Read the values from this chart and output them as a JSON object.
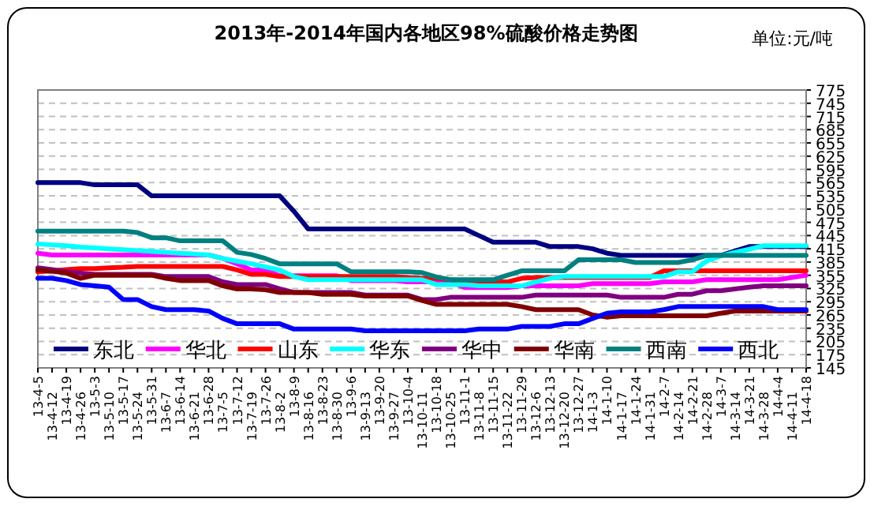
{
  "chart_data": {
    "type": "line",
    "title": "2013年-2014年国内各地区98%硫酸价格走势图",
    "ylabel": "单位:元/吨",
    "categories": [
      "13-4-5",
      "13-4-12",
      "13-4-19",
      "13-4-26",
      "13-5-3",
      "13-5-10",
      "13-5-17",
      "13-5-24",
      "13-5-31",
      "13-6-7",
      "13-6-14",
      "13-6-21",
      "13-6-28",
      "13-7-5",
      "13-7-12",
      "13-7-19",
      "13-7-26",
      "13-8-2",
      "13-8-9",
      "13-8-16",
      "13-8-23",
      "13-8-30",
      "13-9-6",
      "13-9-13",
      "13-9-20",
      "13-9-27",
      "13-10-4",
      "13-10-11",
      "13-10-18",
      "13-10-25",
      "13-11-1",
      "13-11-8",
      "13-11-15",
      "13-11-22",
      "13-11-29",
      "13-12-6",
      "13-12-13",
      "13-12-20",
      "13-12-27",
      "14-1-3",
      "14-1-10",
      "14-1-17",
      "14-1-24",
      "14-1-31",
      "14-2-7",
      "14-2-14",
      "14-2-21",
      "14-2-28",
      "14-3-7",
      "14-3-14",
      "14-3-21",
      "14-3-28",
      "14-4-4",
      "14-4-11",
      "14-4-18"
    ],
    "series": [
      {
        "name": "东北",
        "color": "#000080",
        "values": [
          565,
          565,
          565,
          565,
          560,
          560,
          560,
          560,
          535,
          535,
          535,
          535,
          535,
          535,
          535,
          535,
          535,
          535,
          500,
          460,
          460,
          460,
          460,
          460,
          460,
          460,
          460,
          460,
          460,
          460,
          460,
          445,
          430,
          430,
          430,
          430,
          420,
          420,
          420,
          415,
          405,
          400,
          400,
          400,
          400,
          400,
          400,
          400,
          400,
          410,
          420,
          420,
          420,
          420,
          420
        ]
      },
      {
        "name": "华北",
        "color": "#ff00ff",
        "values": [
          405,
          401,
          401,
          401,
          401,
          401,
          401,
          401,
          401,
          401,
          401,
          401,
          401,
          393,
          381,
          367,
          367,
          354,
          354,
          354,
          354,
          354,
          343,
          343,
          343,
          343,
          340,
          340,
          340,
          340,
          327,
          327,
          327,
          327,
          331,
          331,
          331,
          331,
          331,
          336,
          336,
          336,
          336,
          336,
          340,
          340,
          340,
          345,
          345,
          345,
          345,
          345,
          345,
          350,
          355
        ]
      },
      {
        "name": "山东",
        "color": "#ff0000",
        "values": [
          363,
          365,
          368,
          370,
          370,
          372,
          373,
          375,
          375,
          375,
          375,
          375,
          375,
          375,
          367,
          357,
          357,
          352,
          352,
          352,
          352,
          352,
          352,
          352,
          352,
          352,
          350,
          348,
          348,
          345,
          340,
          340,
          340,
          340,
          348,
          350,
          350,
          350,
          350,
          350,
          350,
          350,
          350,
          350,
          365,
          365,
          365,
          365,
          365,
          365,
          365,
          365,
          365,
          365,
          365
        ]
      },
      {
        "name": "华东",
        "color": "#00ffff",
        "values": [
          426,
          424,
          422,
          419,
          417,
          415,
          413,
          411,
          409,
          407,
          405,
          403,
          401,
          393,
          387,
          381,
          374,
          367,
          352,
          345,
          345,
          345,
          345,
          345,
          345,
          345,
          345,
          345,
          334,
          334,
          334,
          331,
          331,
          331,
          331,
          340,
          348,
          352,
          352,
          352,
          352,
          352,
          352,
          352,
          352,
          363,
          363,
          387,
          399,
          407,
          414,
          422,
          422,
          422,
          422
        ]
      },
      {
        "name": "华中",
        "color": "#800080",
        "values": [
          372,
          368,
          363,
          360,
          357,
          357,
          357,
          357,
          357,
          352,
          352,
          352,
          352,
          340,
          334,
          334,
          334,
          324,
          316,
          316,
          316,
          316,
          316,
          310,
          310,
          310,
          310,
          300,
          300,
          305,
          305,
          305,
          305,
          305,
          305,
          310,
          310,
          310,
          310,
          310,
          310,
          305,
          305,
          305,
          305,
          312,
          312,
          320,
          320,
          324,
          328,
          331,
          331,
          331,
          331
        ]
      },
      {
        "name": "华南",
        "color": "#800000",
        "values": [
          367,
          364,
          360,
          348,
          355,
          355,
          355,
          355,
          355,
          348,
          343,
          343,
          343,
          331,
          324,
          324,
          322,
          316,
          316,
          316,
          312,
          312,
          312,
          308,
          308,
          308,
          308,
          298,
          289,
          289,
          289,
          289,
          289,
          289,
          284,
          277,
          277,
          277,
          277,
          265,
          260,
          263,
          263,
          263,
          263,
          263,
          263,
          263,
          269,
          274,
          274,
          274,
          274,
          274,
          274
        ]
      },
      {
        "name": "西南",
        "color": "#008080",
        "values": [
          455,
          455,
          455,
          455,
          455,
          455,
          455,
          452,
          440,
          440,
          433,
          433,
          433,
          433,
          407,
          402,
          393,
          381,
          381,
          381,
          381,
          381,
          363,
          363,
          363,
          363,
          363,
          361,
          351,
          345,
          345,
          345,
          345,
          355,
          365,
          365,
          365,
          365,
          390,
          390,
          390,
          390,
          384,
          384,
          384,
          384,
          390,
          400,
          400,
          400,
          400,
          400,
          400,
          400,
          400
        ]
      },
      {
        "name": "西北",
        "color": "#0000ff",
        "values": [
          348,
          348,
          343,
          334,
          331,
          328,
          300,
          300,
          284,
          277,
          277,
          277,
          274,
          257,
          245,
          245,
          245,
          245,
          233,
          233,
          233,
          233,
          233,
          229,
          229,
          229,
          229,
          229,
          229,
          229,
          229,
          233,
          233,
          233,
          239,
          239,
          239,
          245,
          245,
          257,
          269,
          272,
          272,
          272,
          277,
          284,
          284,
          284,
          284,
          284,
          284,
          284,
          277,
          277,
          277
        ]
      }
    ],
    "ylim": [
      145,
      775
    ],
    "yticks": [
      145,
      175,
      205,
      235,
      265,
      295,
      325,
      355,
      385,
      415,
      445,
      475,
      505,
      535,
      565,
      595,
      625,
      655,
      685,
      715,
      745,
      775
    ],
    "grid": "y",
    "legend": "bottom"
  }
}
